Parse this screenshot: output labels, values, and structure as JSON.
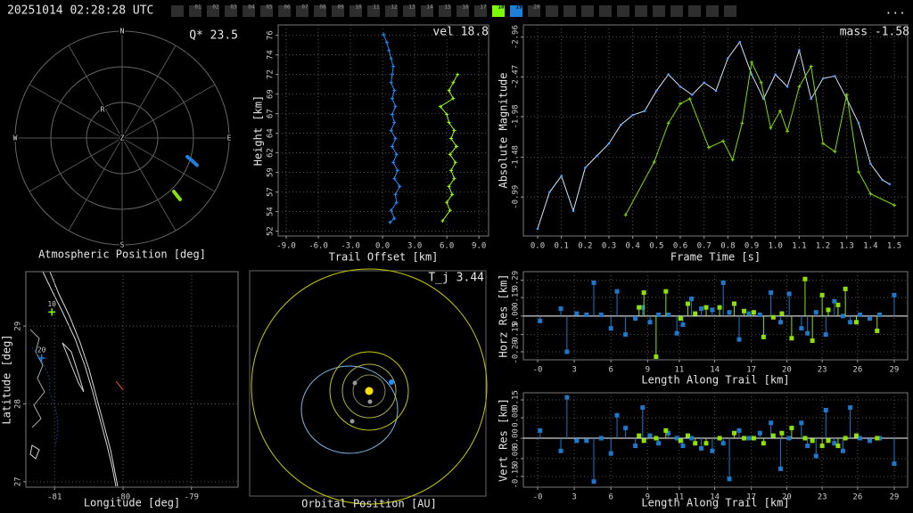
{
  "header": {
    "timestamp": "20251014 02:28:28 UTC",
    "frames": [
      "01",
      "02",
      "03",
      "04",
      "05",
      "06",
      "07",
      "08",
      "09",
      "10",
      "11",
      "12",
      "13",
      "14",
      "15",
      "16",
      "17",
      "18",
      "19",
      "20"
    ],
    "frame_colors": [
      null,
      null,
      null,
      null,
      null,
      null,
      null,
      null,
      null,
      null,
      null,
      null,
      null,
      null,
      null,
      null,
      null,
      "#7cfc00",
      "#1e7fd8",
      null
    ],
    "menu": "..."
  },
  "chart_data": [
    {
      "type": "polar",
      "xlabel": "Atmospheric Position [deg]",
      "annotation": "Q* 23.5",
      "labels": [
        "N",
        "E",
        "S",
        "W",
        "Z",
        "R"
      ],
      "rlim": [
        0,
        90
      ],
      "series": [
        {
          "color": "#1e7fd8",
          "azimuth": [
            106,
            108,
            110
          ],
          "zenith": [
            57,
            62,
            67
          ]
        },
        {
          "color": "#8ee000",
          "azimuth": [
            136,
            136.4,
            136.7
          ],
          "zenith": [
            62.6,
            66.8,
            71
          ]
        }
      ]
    },
    {
      "type": "line",
      "xlabel": "Trail Offset [km]",
      "ylabel": "Height [km]",
      "annotation": "vel 18.8",
      "grid": true,
      "xlim": [
        -9.75,
        9.9
      ],
      "ylim": [
        51.3,
        77.7
      ],
      "xticks": [
        {
          "value": -9,
          "label": "-9.0"
        },
        {
          "value": -6,
          "label": "-6.0"
        },
        {
          "value": -3,
          "label": "-3.0"
        },
        {
          "value": 0,
          "label": "0.0"
        },
        {
          "value": 3,
          "label": "3.0"
        },
        {
          "value": 6,
          "label": "6.0"
        },
        {
          "value": 9,
          "label": "9.0"
        }
      ],
      "yticks": [
        {
          "value": 51.9,
          "label": "52"
        },
        {
          "value": 54.35,
          "label": "54"
        },
        {
          "value": 56.8,
          "label": "57"
        },
        {
          "value": 59.25,
          "label": "59"
        },
        {
          "value": 61.7,
          "label": "62"
        },
        {
          "value": 64.15,
          "label": "64"
        },
        {
          "value": 66.6,
          "label": "67"
        },
        {
          "value": 69.05,
          "label": "69"
        },
        {
          "value": 71.5,
          "label": "72"
        },
        {
          "value": 73.95,
          "label": "74"
        },
        {
          "value": 76.4,
          "label": "76"
        }
      ],
      "series": [
        {
          "color": "#1e90ff",
          "marker": "plus",
          "x": [
            0.1,
            0.4,
            0.6,
            0.8,
            1.0,
            0.9,
            0.8,
            1.1,
            0.9,
            1.2,
            0.9,
            1.1,
            0.8,
            1.2,
            0.9,
            1.3,
            1.0,
            1.4,
            1.1,
            1.6,
            1.2,
            1.3,
            0.8,
            1.1,
            0.7
          ],
          "y": [
            76.5,
            75.5,
            74.5,
            73.5,
            72.5,
            71.5,
            70.5,
            69.5,
            68.5,
            67.5,
            66.5,
            65.5,
            64.5,
            63.5,
            62.5,
            61.5,
            60.5,
            59.5,
            58.5,
            57.5,
            56.5,
            55.5,
            54.5,
            53.5,
            53.0
          ]
        },
        {
          "color": "#9aff00",
          "marker": "plus",
          "x": [
            5.6,
            6.3,
            6.0,
            6.5,
            6.2,
            6.7,
            6.4,
            6.8,
            6.3,
            6.9,
            6.4,
            6.7,
            6.2,
            6.0,
            5.4,
            6.6,
            6.2,
            6.6,
            7.0
          ],
          "y": [
            53.2,
            54.5,
            55.5,
            56.5,
            57.5,
            58.5,
            59.5,
            60.5,
            61.5,
            62.5,
            63.5,
            64.5,
            65.5,
            66.5,
            67.5,
            68.5,
            69.5,
            70.5,
            71.5
          ]
        }
      ]
    },
    {
      "type": "line",
      "xlabel": "Frame Time [s]",
      "ylabel": "Absolute Magnitude",
      "annotation": "mass -1.58",
      "grid": true,
      "xlim": [
        -0.06,
        1.556
      ],
      "ylim": [
        -0.51,
        -3.11
      ],
      "xticks": [
        {
          "value": 0,
          "label": "0.0"
        },
        0.1,
        0.2,
        0.3,
        0.4,
        0.5,
        0.6,
        0.7,
        0.8,
        0.9,
        {
          "value": 1,
          "label": "1.0"
        },
        1.1,
        1.2,
        1.3,
        1.4,
        1.5
      ],
      "yticks": [
        -2.96,
        -2.47,
        -1.98,
        -1.48,
        -0.99
      ],
      "series": [
        {
          "color": "#cfe6ff",
          "marker": "dot",
          "x": [
            0,
            0.05,
            0.1,
            0.15,
            0.2,
            0.25,
            0.3,
            0.35,
            0.4,
            0.45,
            0.5,
            0.55,
            0.6,
            0.65,
            0.7,
            0.75,
            0.8,
            0.85,
            0.9,
            0.95,
            1.0,
            1.05,
            1.1,
            1.15,
            1.2,
            1.25,
            1.3,
            1.35,
            1.4,
            1.45,
            1.48
          ],
          "y": [
            -0.6,
            -1.05,
            -1.25,
            -0.82,
            -1.35,
            -1.5,
            -1.65,
            -1.88,
            -2.0,
            -2.05,
            -2.3,
            -2.5,
            -2.35,
            -2.25,
            -2.4,
            -2.3,
            -2.7,
            -2.9,
            -2.5,
            -2.2,
            -2.5,
            -2.35,
            -2.8,
            -2.2,
            -2.45,
            -2.48,
            -2.2,
            -1.9,
            -1.4,
            -1.2,
            -1.15
          ]
        },
        {
          "color": "#7fdd00",
          "marker": "plus",
          "x": [
            0.37,
            0.49,
            0.55,
            0.6,
            0.64,
            0.72,
            0.78,
            0.82,
            0.86,
            0.9,
            0.94,
            0.98,
            1.02,
            1.05,
            1.1,
            1.15,
            1.2,
            1.25,
            1.3,
            1.35,
            1.4,
            1.5
          ],
          "y": [
            -0.77,
            -1.42,
            -1.9,
            -2.14,
            -2.2,
            -1.6,
            -1.68,
            -1.45,
            -1.9,
            -2.65,
            -2.4,
            -1.84,
            -2.05,
            -1.8,
            -2.35,
            -2.6,
            -1.65,
            -1.55,
            -2.25,
            -1.3,
            -1.03,
            -0.89
          ]
        }
      ]
    },
    {
      "type": "map",
      "xlabel": "Longitude [deg]",
      "ylabel": "Latitude [deg]",
      "grid": true,
      "xlim": [
        -81.42,
        -78.32
      ],
      "ylim": [
        26.93,
        29.7
      ],
      "xticks": [
        -81,
        -80,
        -79
      ],
      "yticks": [
        27,
        28,
        29
      ],
      "series": [
        {
          "color": "#7cfc00",
          "marker": "plus",
          "label": "10",
          "x": [
            -81.04
          ],
          "y": [
            29.18
          ]
        },
        {
          "color": "#1e7fd8",
          "marker": "plus",
          "label": "20",
          "x": [
            -81.19
          ],
          "y": [
            28.59
          ]
        },
        {
          "color": "#ff5030",
          "marker": "none",
          "x": [
            -80.1,
            -80.0
          ],
          "y": [
            28.29,
            28.18
          ]
        }
      ]
    },
    {
      "type": "orbit",
      "xlabel": "Orbital Position [AU]",
      "annotation": "T_j 3.44"
    },
    {
      "type": "stem",
      "xlabel": "Length Along Trail [km]",
      "ylabel": "Horz Res [km]",
      "grid": true,
      "xlim": [
        -1.37,
        30.1
      ],
      "ylim": [
        -0.355,
        0.36
      ],
      "xticks": [
        {
          "value": -0.2,
          "label": "-0"
        },
        {
          "value": 2.8,
          "label": "3"
        },
        {
          "value": 5.8,
          "label": "6"
        },
        {
          "value": 8.8,
          "label": "9"
        },
        {
          "value": 11.4,
          "label": "11"
        },
        {
          "value": 14.3,
          "label": "14"
        },
        {
          "value": 17.3,
          "label": "17"
        },
        {
          "value": 20.2,
          "label": "20"
        },
        {
          "value": 23.1,
          "label": "23"
        },
        {
          "value": 26.0,
          "label": "26"
        },
        {
          "value": 29.0,
          "label": "29"
        }
      ],
      "yticks": [
        0.29,
        0.15,
        {
          "value": 0,
          "label": "0.00"
        },
        -0.15,
        -0.29
      ],
      "series": [
        {
          "color": "#1f77c9",
          "x": [
            0,
            1.7,
            2.2,
            3,
            3.8,
            4.4,
            5.0,
            5.8,
            6.3,
            7.0,
            7.8,
            8.4,
            9.0,
            9.7,
            10.5,
            11.2,
            11.7,
            12.4,
            13.2,
            14.1,
            15.0,
            15.5,
            16.3,
            17.1,
            18.0,
            18.9,
            19.7,
            20.4,
            21.4,
            21.9,
            22.6,
            23.4,
            24.1,
            24.8,
            25.4,
            26.2,
            27.0,
            27.8,
            29.0
          ],
          "y": [
            -0.04,
            0.06,
            -0.29,
            0.02,
            0.01,
            0.27,
            0.01,
            -0.1,
            0.2,
            -0.15,
            -0.02,
            0.07,
            -0.05,
            0.01,
            0.01,
            -0.14,
            -0.07,
            0.14,
            0.06,
            0.05,
            0.27,
            0.03,
            -0.19,
            0.02,
            0.01,
            0.19,
            -0.05,
            0.18,
            -0.1,
            -0.14,
            0.03,
            -0.15,
            0.12,
            0.0,
            -0.05,
            0.01,
            -0.02,
            0.01,
            0.17
          ]
        },
        {
          "color": "#8ee000",
          "x": [
            8.1,
            8.5,
            9.5,
            10.3,
            11.5,
            12.1,
            12.7,
            13.6,
            14.7,
            15.9,
            16.7,
            17.5,
            18.3,
            19.1,
            19.8,
            20.6,
            21.7,
            22.3,
            23.1,
            23.6,
            24.4,
            25.0,
            25.9,
            27.6
          ],
          "y": [
            0.07,
            0.19,
            -0.33,
            0.2,
            -0.02,
            0.1,
            0.02,
            0.07,
            0.07,
            0.1,
            0.04,
            0.03,
            -0.17,
            -0.01,
            0.02,
            -0.18,
            0.3,
            -0.2,
            0.17,
            0.05,
            0.09,
            0.22,
            -0.05,
            -0.12
          ]
        }
      ]
    },
    {
      "type": "stem",
      "xlabel": "Length Along Trail [km]",
      "ylabel": "Vert Res [km]",
      "grid": true,
      "xlim": [
        -1.37,
        30.1
      ],
      "ylim": [
        -0.192,
        0.178
      ],
      "xticks": [
        {
          "value": -0.2,
          "label": "-0"
        },
        {
          "value": 2.8,
          "label": "3"
        },
        {
          "value": 5.8,
          "label": "6"
        },
        {
          "value": 8.8,
          "label": "9"
        },
        {
          "value": 11.4,
          "label": "11"
        },
        {
          "value": 14.3,
          "label": "14"
        },
        {
          "value": 17.3,
          "label": "17"
        },
        {
          "value": 20.2,
          "label": "20"
        },
        {
          "value": 23.1,
          "label": "23"
        },
        {
          "value": 26.0,
          "label": "26"
        },
        {
          "value": 29.0,
          "label": "29"
        }
      ],
      "yticks": [
        0.15,
        0.08,
        {
          "value": 0,
          "label": "0.00"
        },
        -0.08,
        -0.15
      ],
      "series": [
        {
          "color": "#1f77c9",
          "x": [
            0,
            1.7,
            2.2,
            3,
            3.8,
            4.4,
            5.0,
            5.8,
            6.3,
            7.0,
            7.8,
            8.4,
            9.0,
            9.7,
            10.5,
            11.2,
            11.7,
            12.4,
            13.2,
            14.1,
            15.0,
            15.5,
            16.3,
            17.1,
            18.0,
            18.9,
            19.7,
            20.4,
            21.4,
            21.9,
            22.6,
            23.4,
            24.1,
            24.8,
            25.4,
            26.2,
            27.0,
            27.8,
            29.0
          ],
          "y": [
            0.03,
            -0.05,
            0.16,
            -0.01,
            -0.01,
            -0.17,
            0.0,
            -0.06,
            0.09,
            0.04,
            -0.03,
            0.12,
            0.01,
            -0.02,
            0.02,
            0.0,
            -0.03,
            0.0,
            -0.04,
            -0.05,
            -0.02,
            -0.16,
            0.03,
            0.0,
            0.02,
            0.06,
            -0.12,
            0.0,
            0.06,
            -0.03,
            -0.07,
            0.11,
            -0.02,
            -0.05,
            0.12,
            0.0,
            -0.01,
            0.0,
            -0.1
          ]
        },
        {
          "color": "#8ee000",
          "x": [
            8.1,
            8.5,
            9.5,
            10.3,
            11.5,
            12.1,
            12.7,
            13.6,
            14.7,
            15.9,
            16.7,
            17.5,
            18.3,
            19.1,
            19.8,
            20.6,
            21.7,
            22.3,
            23.1,
            23.6,
            24.4,
            25.0,
            25.9,
            27.6
          ],
          "y": [
            0.01,
            -0.01,
            0.0,
            0.03,
            -0.01,
            0.01,
            -0.02,
            -0.02,
            0.0,
            0.02,
            0.0,
            0.0,
            -0.02,
            0.01,
            0.02,
            0.04,
            0.0,
            -0.01,
            -0.03,
            -0.01,
            -0.03,
            0.0,
            0.01,
            0.0
          ]
        }
      ]
    }
  ]
}
